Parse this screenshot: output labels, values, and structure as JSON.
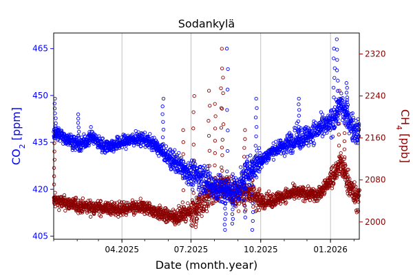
{
  "chart_data": {
    "type": "scatter",
    "title": "Sodankylä",
    "xlabel": "Date (month.year)",
    "ylabel_left": {
      "main": "CO",
      "sub": "2",
      "unit": " [ppm]"
    },
    "ylabel_right": {
      "main": "CH",
      "sub": "4",
      "unit": " [ppb]"
    },
    "x_ticks": [
      "04.2025",
      "07.2025",
      "10.2025",
      "01.2026"
    ],
    "x_range": [
      "2025-01-01",
      "2026-02-08"
    ],
    "y_left_range": [
      404,
      470
    ],
    "y_right_range": [
      1967,
      2360
    ],
    "y_left_ticks": [
      405,
      420,
      435,
      450,
      465
    ],
    "y_right_ticks": [
      2000,
      2080,
      2160,
      2240,
      2320
    ],
    "grid": "vertical",
    "series": [
      {
        "name": "",
        "axis": "left",
        "color": "#0000ff",
        "marker": "open-circle",
        "trend": [
          [
            "2025-01-05",
            438
          ],
          [
            "2025-01-20",
            436
          ],
          [
            "2025-02-05",
            434
          ],
          [
            "2025-02-20",
            437
          ],
          [
            "2025-03-05",
            434
          ],
          [
            "2025-03-20",
            434
          ],
          [
            "2025-04-01",
            435
          ],
          [
            "2025-04-15",
            436
          ],
          [
            "2025-05-01",
            436
          ],
          [
            "2025-05-15",
            434
          ],
          [
            "2025-06-01",
            430
          ],
          [
            "2025-06-15",
            428
          ],
          [
            "2025-07-01",
            425
          ],
          [
            "2025-07-15",
            424
          ],
          [
            "2025-08-01",
            421
          ],
          [
            "2025-08-15",
            419
          ],
          [
            "2025-09-01",
            420
          ],
          [
            "2025-09-15",
            426
          ],
          [
            "2025-10-01",
            429
          ],
          [
            "2025-10-15",
            432
          ],
          [
            "2025-11-01",
            434
          ],
          [
            "2025-11-15",
            436
          ],
          [
            "2025-12-01",
            437
          ],
          [
            "2025-12-15",
            439
          ],
          [
            "2026-01-01",
            441
          ],
          [
            "2026-01-15",
            447
          ],
          [
            "2026-02-01",
            439
          ],
          [
            "2026-02-08",
            438
          ]
        ],
        "peaks": [
          [
            "2025-01-03",
            449
          ],
          [
            "2025-02-03",
            444
          ],
          [
            "2025-05-25",
            449
          ],
          [
            "2025-08-18",
            465
          ],
          [
            "2025-09-25",
            449
          ],
          [
            "2025-11-20",
            449
          ],
          [
            "2026-01-06",
            465
          ],
          [
            "2026-01-10",
            468
          ],
          [
            "2026-01-23",
            454
          ]
        ],
        "dips": [
          [
            "2025-08-15",
            407
          ],
          [
            "2025-08-25",
            409
          ],
          [
            "2025-09-20",
            407
          ],
          [
            "2025-09-10",
            411
          ]
        ]
      },
      {
        "name": "",
        "axis": "right",
        "color": "#8b0000",
        "marker": "open-circle",
        "trend": [
          [
            "2025-01-05",
            2040
          ],
          [
            "2025-01-20",
            2035
          ],
          [
            "2025-02-05",
            2030
          ],
          [
            "2025-02-20",
            2028
          ],
          [
            "2025-03-05",
            2027
          ],
          [
            "2025-03-20",
            2025
          ],
          [
            "2025-04-01",
            2024
          ],
          [
            "2025-04-15",
            2026
          ],
          [
            "2025-05-01",
            2028
          ],
          [
            "2025-05-15",
            2020
          ],
          [
            "2025-06-01",
            2010
          ],
          [
            "2025-06-15",
            2012
          ],
          [
            "2025-07-01",
            2020
          ],
          [
            "2025-07-15",
            2035
          ],
          [
            "2025-08-01",
            2060
          ],
          [
            "2025-08-15",
            2070
          ],
          [
            "2025-09-01",
            2050
          ],
          [
            "2025-09-15",
            2060
          ],
          [
            "2025-10-01",
            2040
          ],
          [
            "2025-10-15",
            2040
          ],
          [
            "2025-11-01",
            2050
          ],
          [
            "2025-11-15",
            2055
          ],
          [
            "2025-12-01",
            2055
          ],
          [
            "2025-12-15",
            2050
          ],
          [
            "2026-01-01",
            2080
          ],
          [
            "2026-01-15",
            2110
          ],
          [
            "2026-02-01",
            2050
          ],
          [
            "2026-02-08",
            2045
          ]
        ],
        "peaks": [
          [
            "2025-01-02",
            2150
          ],
          [
            "2025-06-20",
            2175
          ],
          [
            "2025-07-05",
            2240
          ],
          [
            "2025-07-25",
            2250
          ],
          [
            "2025-08-02",
            2225
          ],
          [
            "2025-08-10",
            2330
          ],
          [
            "2025-08-12",
            2275
          ],
          [
            "2025-09-10",
            2175
          ],
          [
            "2026-01-12",
            2250
          ],
          [
            "2026-01-20",
            2200
          ]
        ],
        "dips": [
          [
            "2025-07-08",
            1990
          ],
          [
            "2025-06-10",
            1995
          ]
        ]
      }
    ]
  }
}
